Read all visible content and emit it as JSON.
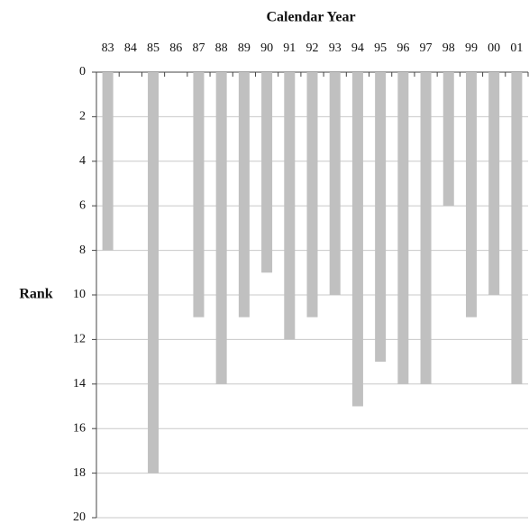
{
  "chart_data": {
    "type": "bar",
    "title": "Calendar Year",
    "y_label": "Rank",
    "categories": [
      "83",
      "84",
      "85",
      "86",
      "87",
      "88",
      "89",
      "90",
      "91",
      "92",
      "93",
      "94",
      "95",
      "96",
      "97",
      "98",
      "99",
      "00",
      "01"
    ],
    "values": [
      8,
      null,
      18,
      null,
      11,
      14,
      11,
      9,
      12,
      11,
      10,
      15,
      13,
      14,
      14,
      6,
      11,
      10,
      14
    ],
    "color": "#c0c0c0",
    "ylim": [
      0,
      20
    ],
    "yticks": [
      0,
      2,
      4,
      6,
      8,
      10,
      12,
      14,
      16,
      18,
      20
    ],
    "y_inverted": true,
    "x_axis_position": "top",
    "grid": true
  }
}
